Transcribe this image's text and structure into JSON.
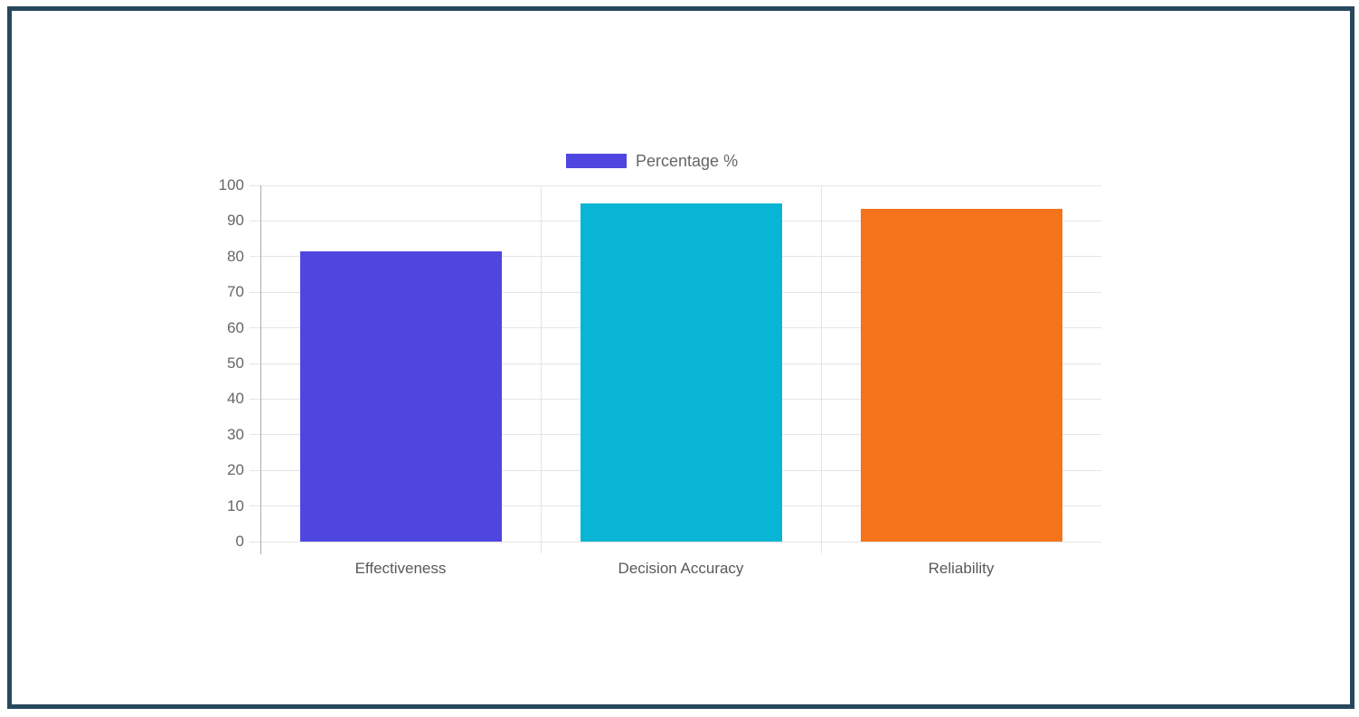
{
  "page": {
    "background": "#ffffff",
    "frame_border_color": "#27485c"
  },
  "chart_data": {
    "type": "bar",
    "categories": [
      "Effectiveness",
      "Decision Accuracy",
      "Reliability"
    ],
    "series": [
      {
        "name": "Percentage %",
        "values": [
          81.5,
          95,
          93.5
        ],
        "colors": [
          "#4F46E0",
          "#08B5D4",
          "#F5731B"
        ]
      }
    ],
    "title": "",
    "xlabel": "",
    "ylabel": "",
    "ylim": [
      0,
      100
    ],
    "y_ticks": [
      0,
      10,
      20,
      30,
      40,
      50,
      60,
      70,
      80,
      90,
      100
    ],
    "grid": true,
    "legend_position": "top",
    "legend_swatch_color": "#4F46E0"
  },
  "style": {
    "grid_color": "#e5e5e5",
    "axis_line_color": "#ababab",
    "tick_label_color": "#666666",
    "category_label_color": "#595959",
    "legend_text_color": "#666666"
  }
}
